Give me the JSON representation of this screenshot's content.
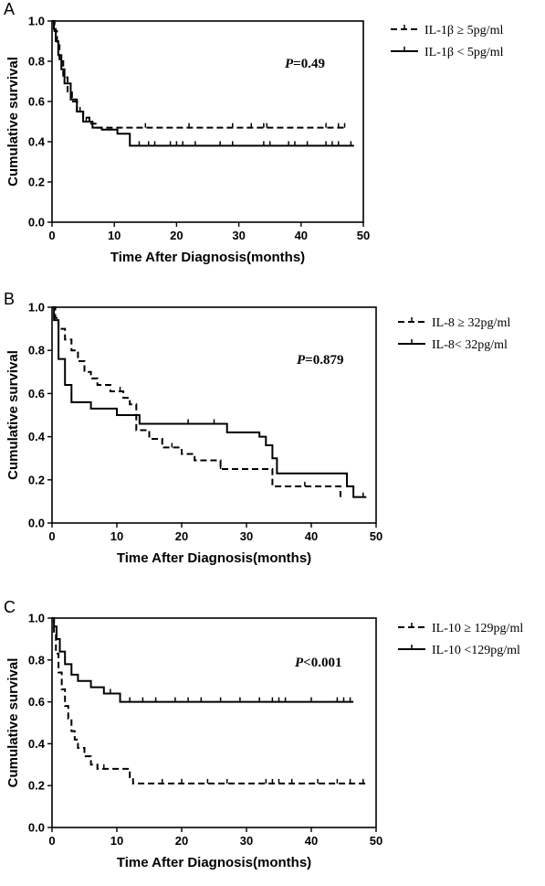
{
  "chart_data": [
    {
      "panel": "A",
      "type": "line",
      "step": true,
      "xlabel": "Time After Diagnosis(months)",
      "ylabel": "Cumulative survival",
      "xlim": [
        0,
        50
      ],
      "ylim": [
        0,
        1.0
      ],
      "xticks": [
        0,
        10,
        20,
        30,
        40,
        50
      ],
      "yticks": [
        0.0,
        0.2,
        0.4,
        0.6,
        0.8,
        1.0
      ],
      "annotation": {
        "italic": "P",
        "text": "=0.49"
      },
      "legend_position": "top-right outside",
      "series": [
        {
          "name": "IL-1β  ≥ 5pg/ml",
          "style": "dashed",
          "x": [
            0,
            0.4,
            0.8,
            1.2,
            1.8,
            2.5,
            3.2,
            4.0,
            5.0,
            6.0,
            7.0,
            47
          ],
          "y": [
            1.0,
            0.95,
            0.88,
            0.8,
            0.72,
            0.65,
            0.6,
            0.55,
            0.52,
            0.49,
            0.47,
            0.47
          ],
          "censored": [
            15,
            22,
            29,
            32,
            34,
            34.5,
            44,
            46,
            47
          ]
        },
        {
          "name": "IL-1β  < 5pg/ml",
          "style": "solid",
          "x": [
            0,
            0.3,
            0.6,
            1.0,
            1.5,
            2.0,
            3.0,
            4.0,
            5.0,
            6.5,
            8.0,
            10.5,
            12.5,
            48.5
          ],
          "y": [
            1.0,
            0.96,
            0.9,
            0.83,
            0.76,
            0.69,
            0.61,
            0.55,
            0.5,
            0.47,
            0.46,
            0.44,
            0.38,
            0.38
          ],
          "censored": [
            4.5,
            5.5,
            6.5,
            14,
            15.5,
            16.5,
            19,
            20,
            21,
            23,
            27,
            29,
            34,
            35,
            38,
            39,
            41,
            44,
            45,
            46,
            48
          ]
        }
      ]
    },
    {
      "panel": "B",
      "type": "line",
      "step": true,
      "xlabel": "Time After Diagnosis(months)",
      "ylabel": "Cumulative survival",
      "xlim": [
        0,
        50
      ],
      "ylim": [
        0,
        1.0
      ],
      "xticks": [
        0,
        10,
        20,
        30,
        40,
        50
      ],
      "yticks": [
        0.0,
        0.2,
        0.4,
        0.6,
        0.8,
        1.0
      ],
      "annotation": {
        "italic": "P",
        "text": "=0.879"
      },
      "legend_position": "top-right outside",
      "series": [
        {
          "name": "IL-8 ≥ 32pg/ml",
          "style": "dashed",
          "x": [
            0,
            0.5,
            1.0,
            2.0,
            3.0,
            4.0,
            5.0,
            6.0,
            7.0,
            9.0,
            11.0,
            12.0,
            13.0,
            15.0,
            17.0,
            20.0,
            22.0,
            26.0,
            30.0,
            34.0,
            34.5,
            39.0,
            44.5
          ],
          "y": [
            1.0,
            0.95,
            0.9,
            0.85,
            0.8,
            0.75,
            0.7,
            0.67,
            0.64,
            0.61,
            0.58,
            0.55,
            0.43,
            0.39,
            0.35,
            0.32,
            0.29,
            0.25,
            0.25,
            0.17,
            0.17,
            0.17,
            0.12
          ],
          "censored": [
            10.5,
            18.5,
            26,
            39
          ]
        },
        {
          "name": "IL-8< 32pg/ml",
          "style": "solid",
          "x": [
            0,
            0.3,
            1.0,
            2.0,
            3.0,
            6.0,
            10.0,
            12.5,
            13.5,
            27.0,
            32.0,
            33.0,
            34.0,
            34.7,
            45.5,
            46.5,
            48.5
          ],
          "y": [
            1.0,
            0.94,
            0.76,
            0.64,
            0.56,
            0.53,
            0.5,
            0.5,
            0.46,
            0.42,
            0.4,
            0.36,
            0.3,
            0.23,
            0.17,
            0.12,
            0.12
          ],
          "censored": [
            21,
            25,
            48
          ]
        }
      ]
    },
    {
      "panel": "C",
      "type": "line",
      "step": true,
      "xlabel": "Time After Diagnosis(months)",
      "ylabel": "Cumulative survival",
      "xlim": [
        0,
        50
      ],
      "ylim": [
        0,
        1.0
      ],
      "xticks": [
        0,
        10,
        20,
        30,
        40,
        50
      ],
      "yticks": [
        0.0,
        0.2,
        0.4,
        0.6,
        0.8,
        1.0
      ],
      "annotation": {
        "italic": "P",
        "text": "<0.001"
      },
      "legend_position": "top-right outside",
      "series": [
        {
          "name": "IL-10 ≥ 129pg/ml",
          "style": "dashed",
          "x": [
            0,
            0.3,
            0.6,
            1.0,
            1.5,
            2.0,
            2.5,
            3.0,
            3.5,
            4.0,
            5.0,
            6.0,
            7.0,
            12.0,
            12.5,
            48.5
          ],
          "y": [
            1.0,
            0.93,
            0.83,
            0.74,
            0.66,
            0.58,
            0.52,
            0.46,
            0.42,
            0.38,
            0.34,
            0.3,
            0.28,
            0.24,
            0.21,
            0.21
          ],
          "censored": [
            8,
            17,
            20,
            24,
            27,
            33,
            34,
            35,
            37,
            41,
            44,
            46,
            48
          ]
        },
        {
          "name": "IL-10 <129pg/ml",
          "style": "solid",
          "x": [
            0,
            0.3,
            0.7,
            1.2,
            2.0,
            3.0,
            4.0,
            6.0,
            8.0,
            10.5,
            46.5
          ],
          "y": [
            1.0,
            0.96,
            0.9,
            0.84,
            0.78,
            0.73,
            0.7,
            0.67,
            0.64,
            0.6,
            0.6
          ],
          "censored": [
            9,
            12,
            14,
            16,
            19,
            21,
            23,
            26,
            29,
            32,
            34,
            35,
            36,
            40,
            44,
            45,
            46
          ]
        }
      ]
    }
  ]
}
